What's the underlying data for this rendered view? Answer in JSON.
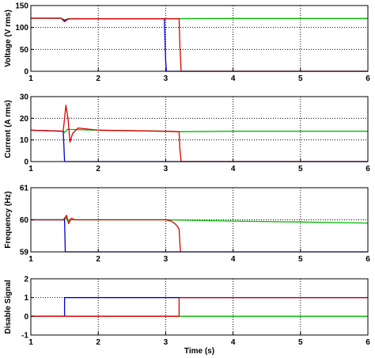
{
  "chart_data": [
    {
      "type": "line",
      "ylabel": "Voltage (V rms)",
      "xlabel": "",
      "xlim": [
        1,
        6
      ],
      "ylim": [
        0,
        150
      ],
      "xticks": [
        "1",
        "2",
        "3",
        "4",
        "5",
        "6"
      ],
      "yticks": [
        "0",
        "50",
        "100",
        "150"
      ],
      "grid": "dotted",
      "series": [
        {
          "color": "#00bb00",
          "x": [
            1,
            1.45,
            1.5,
            1.55,
            1.6,
            3.0,
            4.0,
            5.0,
            6.0
          ],
          "y": [
            121,
            121,
            117,
            120,
            120,
            120,
            120.5,
            120.5,
            120.5
          ]
        },
        {
          "color": "#0000cc",
          "x": [
            1,
            1.45,
            1.5,
            1.55,
            1.6,
            2.98,
            3.0,
            3.01,
            3.02,
            6.0
          ],
          "y": [
            121,
            121,
            116,
            119,
            120,
            120,
            25,
            0,
            0,
            0
          ]
        },
        {
          "color": "#dd0000",
          "x": [
            1,
            1.45,
            1.5,
            1.55,
            1.6,
            3.0,
            3.2,
            3.21,
            3.23,
            6.0
          ],
          "y": [
            121,
            121,
            113,
            119,
            120,
            120,
            120,
            60,
            0,
            0
          ]
        }
      ]
    },
    {
      "type": "line",
      "ylabel": "Current (A rms)",
      "xlabel": "",
      "xlim": [
        1,
        6
      ],
      "ylim": [
        0,
        30
      ],
      "xticks": [
        "1",
        "2",
        "3",
        "4",
        "5",
        "6"
      ],
      "yticks": [
        "0",
        "10",
        "20",
        "30"
      ],
      "grid": "dotted",
      "series": [
        {
          "color": "#00bb00",
          "x": [
            1,
            1.48,
            1.5,
            1.55,
            1.6,
            2.0,
            3.0,
            3.2,
            4.0,
            5.0,
            6.0
          ],
          "y": [
            14.5,
            14,
            13.5,
            15,
            14.8,
            14.5,
            14,
            13.8,
            14,
            14,
            14
          ]
        },
        {
          "color": "#0000cc",
          "x": [
            1,
            1.48,
            1.49,
            1.5,
            1.51,
            6.0
          ],
          "y": [
            14.5,
            14,
            8,
            0,
            0,
            0
          ]
        },
        {
          "color": "#dd0000",
          "x": [
            1,
            1.48,
            1.5,
            1.52,
            1.55,
            1.58,
            1.62,
            1.7,
            2.0,
            3.0,
            3.2,
            3.21,
            3.23,
            6.0
          ],
          "y": [
            14.5,
            14,
            20,
            26,
            20,
            9,
            13,
            15.5,
            14.5,
            14,
            13.8,
            6,
            0,
            0
          ]
        }
      ]
    },
    {
      "type": "line",
      "ylabel": "Frequency (Hz)",
      "xlabel": "",
      "xlim": [
        1,
        6
      ],
      "ylim": [
        59,
        61
      ],
      "xticks": [
        "1",
        "2",
        "3",
        "4",
        "5",
        "6"
      ],
      "yticks": [
        "59",
        "60",
        "61"
      ],
      "grid": "dotted",
      "series": [
        {
          "color": "#00bb00",
          "x": [
            1,
            1.5,
            1.52,
            1.55,
            1.6,
            2.0,
            3.0,
            4.0,
            5.0,
            6.0
          ],
          "y": [
            60,
            60,
            60.08,
            59.96,
            60,
            60,
            60,
            59.96,
            59.93,
            59.9
          ]
        },
        {
          "color": "#0000cc",
          "x": [
            1,
            1.49,
            1.5,
            1.51,
            1.55,
            6.0
          ],
          "y": [
            60,
            60,
            60.02,
            59.0,
            59.0,
            59.0
          ]
        },
        {
          "color": "#dd0000",
          "x": [
            1,
            1.48,
            1.5,
            1.53,
            1.56,
            1.6,
            1.65,
            3.0,
            3.08,
            3.14,
            3.18,
            3.2,
            3.21,
            3.22
          ],
          "y": [
            60,
            60,
            60.05,
            60.14,
            59.88,
            60.05,
            60,
            60,
            59.96,
            59.88,
            59.78,
            59.7,
            59.3,
            59.0
          ]
        }
      ]
    },
    {
      "type": "line",
      "ylabel": "Disable Signal",
      "xlabel": "Time (s)",
      "xlim": [
        1,
        6
      ],
      "ylim": [
        -1,
        2
      ],
      "xticks": [
        "1",
        "2",
        "3",
        "4",
        "5",
        "6"
      ],
      "yticks": [
        "-1",
        "0",
        "1",
        "2"
      ],
      "grid": "dotted",
      "series": [
        {
          "color": "#00bb00",
          "x": [
            1,
            6
          ],
          "y": [
            0,
            0
          ]
        },
        {
          "color": "#0000cc",
          "x": [
            1,
            1.5,
            1.5,
            6
          ],
          "y": [
            0,
            0,
            1,
            1
          ]
        },
        {
          "color": "#dd0000",
          "x": [
            1,
            3.2,
            3.2,
            6
          ],
          "y": [
            0,
            0,
            1,
            1
          ]
        }
      ]
    }
  ]
}
